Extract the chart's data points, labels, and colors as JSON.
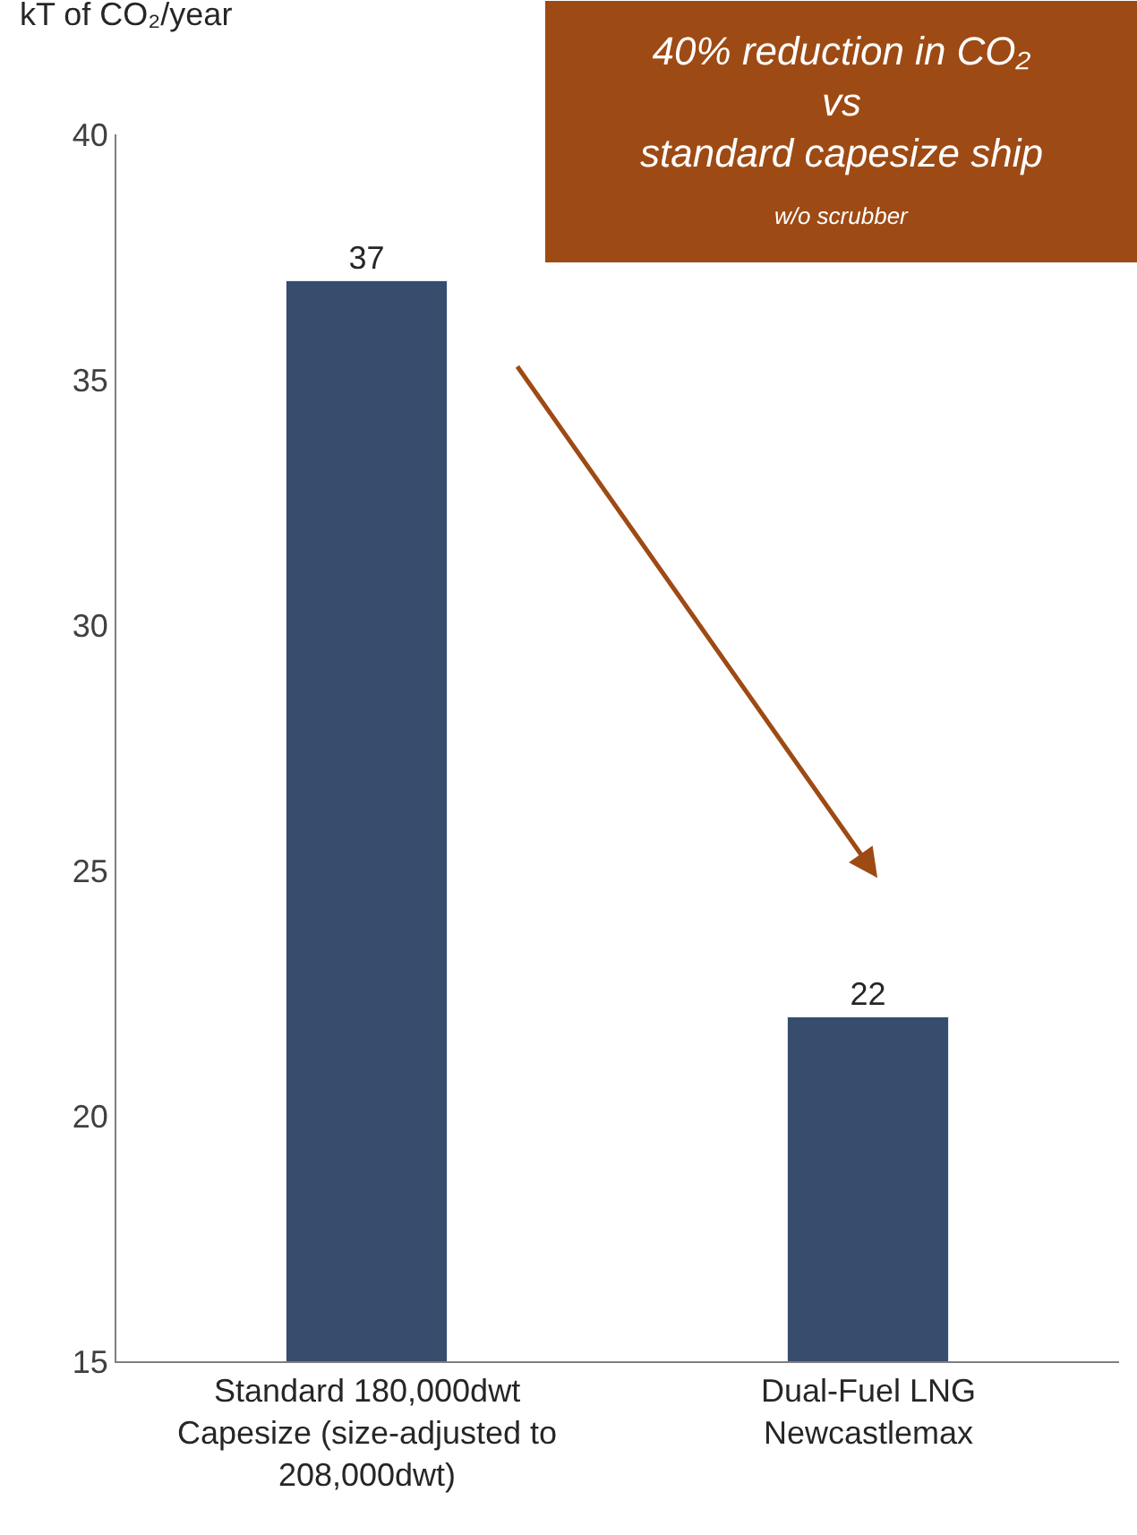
{
  "chart_data": {
    "type": "bar",
    "categories": [
      "Standard 180,000dwt\nCapesize (size-adjusted to\n208,000dwt)",
      "Dual-Fuel LNG\nNewcastlemax"
    ],
    "values": [
      37,
      22
    ],
    "color": "#374d6e",
    "ylim": [
      15,
      40
    ],
    "yticks": [
      15,
      20,
      25,
      30,
      35,
      40
    ],
    "data_labels": true,
    "ylabel": "kT of CO₂/year",
    "annotations": [
      "40% reduction in CO₂\nvs\nstandard capesize ship",
      "w/o scrubber"
    ]
  }
}
